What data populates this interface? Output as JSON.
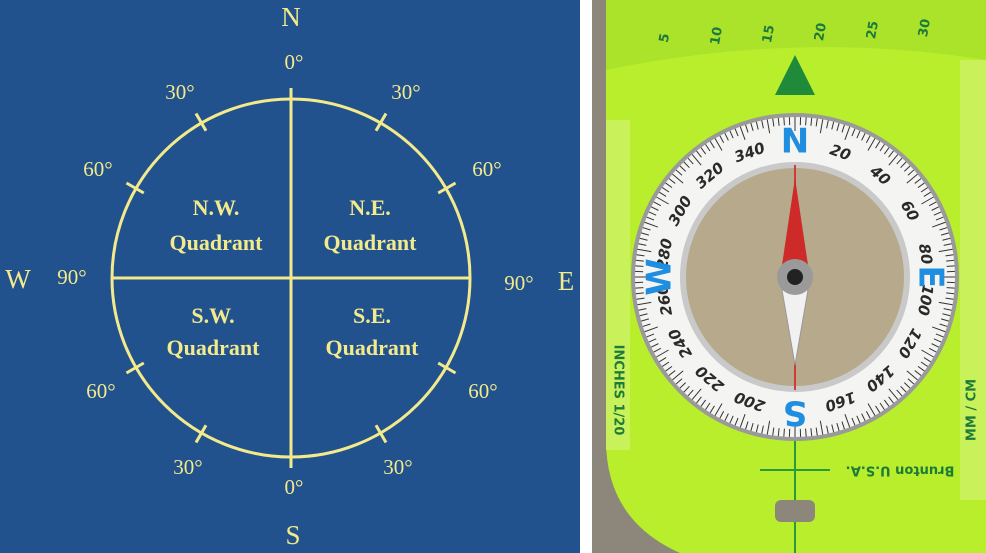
{
  "diagram": {
    "cardinals": {
      "north": "N",
      "south": "S",
      "east": "E",
      "west": "W"
    },
    "degree_labels": [
      "0°",
      "30°",
      "30°",
      "60°",
      "60°",
      "90°",
      "90°",
      "60°",
      "60°",
      "30°",
      "30°",
      "0°"
    ],
    "quadrants": [
      {
        "line1": "N.W.",
        "line2": "Quadrant"
      },
      {
        "line1": "N.E.",
        "line2": "Quadrant"
      },
      {
        "line1": "S.W.",
        "line2": "Quadrant"
      },
      {
        "line1": "S.E.",
        "line2": "Quadrant"
      }
    ]
  },
  "photo": {
    "ring_numbers": [
      "20",
      "40",
      "60",
      "80",
      "100",
      "120",
      "140",
      "160",
      "200",
      "220",
      "240",
      "260",
      "280",
      "300",
      "320",
      "340"
    ],
    "cardinals": [
      "N",
      "E",
      "S",
      "W"
    ],
    "ruler_numbers": [
      "5",
      "10",
      "15",
      "20",
      "25",
      "30"
    ],
    "plate_texts": {
      "inches": "INCHES 1/20",
      "metric": "MM / CM",
      "brand": "Brunton U.S.A."
    }
  }
}
